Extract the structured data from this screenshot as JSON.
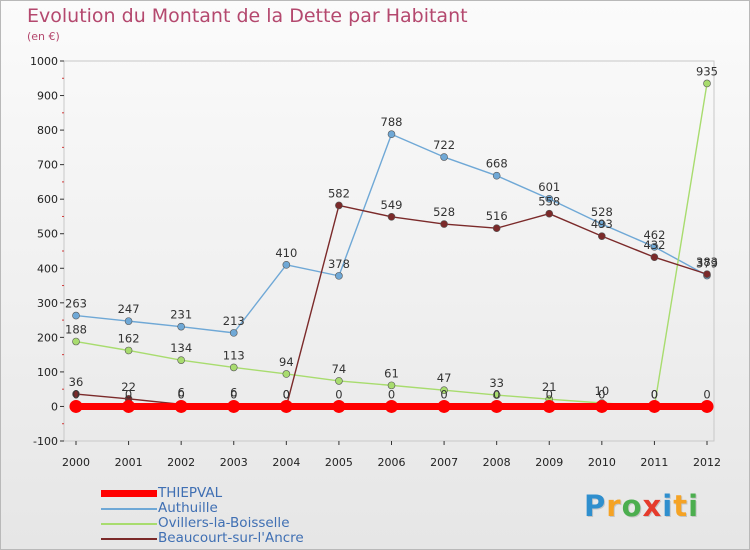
{
  "header": {
    "title": "Evolution du Montant de la Dette par Habitant",
    "subtitle": "(en €)"
  },
  "brand": {
    "letters": [
      "P",
      "r",
      "o",
      "x",
      "i",
      "t",
      "i"
    ],
    "colors": [
      "#2f8fce",
      "#f5a325",
      "#4cae4f",
      "#e53b2c",
      "#2f8fce",
      "#f5a325",
      "#4cae4f"
    ]
  },
  "chart_data": {
    "type": "line",
    "categories": [
      "2000",
      "2001",
      "2002",
      "2003",
      "2004",
      "2005",
      "2006",
      "2007",
      "2008",
      "2009",
      "2010",
      "2011",
      "2012"
    ],
    "ylim": [
      -100,
      1000
    ],
    "yticks": [
      -100,
      0,
      100,
      200,
      300,
      400,
      500,
      600,
      700,
      800,
      900,
      1000
    ],
    "grid": false,
    "legend_position": "bottom-left",
    "series": [
      {
        "name": "THIEPVAL",
        "color": "#ff0000",
        "values": [
          0,
          0,
          0,
          0,
          0,
          0,
          0,
          0,
          0,
          0,
          0,
          0,
          0
        ],
        "labels": [
          "0",
          "0",
          "0",
          "0",
          "0",
          "0",
          "0",
          "0",
          "0",
          "0",
          "0",
          "0",
          "0"
        ]
      },
      {
        "name": "Authuille",
        "color": "#6fa8d6",
        "values": [
          263,
          247,
          231,
          213,
          410,
          378,
          788,
          722,
          668,
          601,
          528,
          462,
          379
        ],
        "labels": [
          "263",
          "247",
          "231",
          "213",
          "410",
          "378",
          "788",
          "722",
          "668",
          "601",
          "528",
          "462",
          "379"
        ]
      },
      {
        "name": "Ovillers-la-Boisselle",
        "color": "#a8dc6e",
        "values": [
          188,
          162,
          134,
          113,
          94,
          74,
          61,
          47,
          33,
          21,
          10,
          0,
          935
        ],
        "labels": [
          "188",
          "162",
          "134",
          "113",
          "94",
          "74",
          "61",
          "47",
          "33",
          "21",
          "10",
          "0",
          "935"
        ]
      },
      {
        "name": "Beaucourt-sur-l'Ancre",
        "color": "#7b2a2a",
        "values": [
          36,
          22,
          6,
          6,
          0,
          582,
          549,
          528,
          516,
          558,
          493,
          432,
          383
        ],
        "labels": [
          "36",
          "22",
          "6",
          "6",
          "0",
          "582",
          "549",
          "528",
          "516",
          "558",
          "493",
          "432",
          "383"
        ]
      }
    ]
  }
}
